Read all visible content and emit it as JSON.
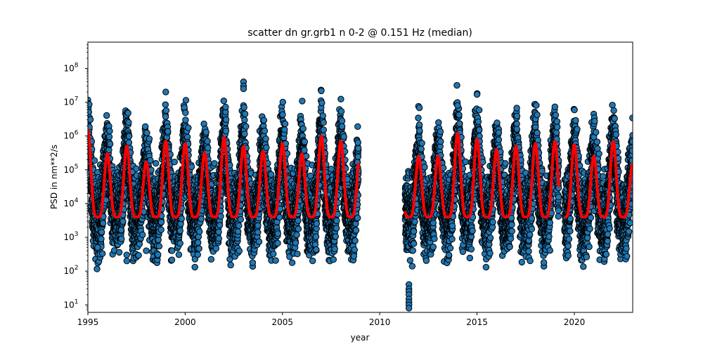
{
  "chart_data": {
    "type": "scatter",
    "title": "scatter dn gr.grb1 n 0-2 @ 0.151 Hz (median)",
    "xlabel": "year",
    "ylabel": "PSD in nm**2/s",
    "xlim": [
      1995,
      2023
    ],
    "ylim": [
      6,
      600000000
    ],
    "yscale": "log",
    "xticks": [
      1995,
      2000,
      2005,
      2010,
      2015,
      2020
    ],
    "xtick_labels": [
      "1995",
      "2000",
      "2005",
      "2010",
      "2015",
      "2020"
    ],
    "yticks": [
      10,
      100,
      1000,
      10000,
      100000,
      1000000,
      10000000,
      100000000
    ],
    "ytick_labels": [
      {
        "base": "10",
        "exp": "1"
      },
      {
        "base": "10",
        "exp": "2"
      },
      {
        "base": "10",
        "exp": "3"
      },
      {
        "base": "10",
        "exp": "4"
      },
      {
        "base": "10",
        "exp": "5"
      },
      {
        "base": "10",
        "exp": "6"
      },
      {
        "base": "10",
        "exp": "7"
      },
      {
        "base": "10",
        "exp": "8"
      }
    ],
    "grid": false,
    "legend": "none",
    "colors": {
      "scatter_fill": "#1f77b4",
      "scatter_edge": "#000000",
      "median_line": "#ff0000"
    },
    "data_segments": [
      {
        "start": 1995.0,
        "end": 2008.9
      },
      {
        "start": 2011.3,
        "end": 2019.2
      },
      {
        "start": 2019.5,
        "end": 2023.0
      }
    ],
    "series": [
      {
        "type": "scatter",
        "seasonal_range": {
          "winter_high": [
            300000,
            10000000
          ],
          "summer_low": [
            600,
            6000
          ]
        }
      },
      {
        "type": "line",
        "median_peaks": [
          {
            "x": 1995.1,
            "y": 1500000
          },
          {
            "x": 1996.0,
            "y": 300000
          },
          {
            "x": 1997.0,
            "y": 500000
          },
          {
            "x": 1998.0,
            "y": 170000
          },
          {
            "x": 1999.0,
            "y": 700000
          },
          {
            "x": 2000.0,
            "y": 600000
          },
          {
            "x": 2001.0,
            "y": 320000
          },
          {
            "x": 2002.0,
            "y": 900000
          },
          {
            "x": 2003.0,
            "y": 500000
          },
          {
            "x": 2004.0,
            "y": 350000
          },
          {
            "x": 2005.0,
            "y": 600000
          },
          {
            "x": 2006.0,
            "y": 300000
          },
          {
            "x": 2007.0,
            "y": 1000000
          },
          {
            "x": 2008.0,
            "y": 700000
          },
          {
            "x": 2008.9,
            "y": 400000
          },
          {
            "x": 2012.0,
            "y": 250000
          },
          {
            "x": 2013.0,
            "y": 250000
          },
          {
            "x": 2014.0,
            "y": 1200000
          },
          {
            "x": 2015.0,
            "y": 800000
          },
          {
            "x": 2016.0,
            "y": 400000
          },
          {
            "x": 2017.0,
            "y": 500000
          },
          {
            "x": 2018.0,
            "y": 600000
          },
          {
            "x": 2019.0,
            "y": 700000
          },
          {
            "x": 2020.0,
            "y": 550000
          },
          {
            "x": 2021.0,
            "y": 250000
          },
          {
            "x": 2022.0,
            "y": 700000
          },
          {
            "x": 2023.0,
            "y": 150000
          }
        ],
        "median_trough": 4000
      }
    ],
    "outliers": [
      {
        "x": 2003.0,
        "y": 40000000
      },
      {
        "x": 2003.0,
        "y": 30000000
      },
      {
        "x": 2003.0,
        "y": 25000000
      },
      {
        "x": 1997.0,
        "y": 300
      },
      {
        "x": 1997.0,
        "y": 200
      },
      {
        "x": 1998.0,
        "y": 400
      },
      {
        "x": 1995.5,
        "y": 500
      },
      {
        "x": 2011.5,
        "y": 40
      },
      {
        "x": 2011.5,
        "y": 30
      },
      {
        "x": 2011.5,
        "y": 25
      },
      {
        "x": 2011.5,
        "y": 20
      },
      {
        "x": 2011.5,
        "y": 15
      },
      {
        "x": 2011.5,
        "y": 12
      },
      {
        "x": 2011.5,
        "y": 10
      },
      {
        "x": 2011.5,
        "y": 8
      },
      {
        "x": 2015.0,
        "y": 17000000
      },
      {
        "x": 2014.0,
        "y": 8000000
      }
    ]
  }
}
